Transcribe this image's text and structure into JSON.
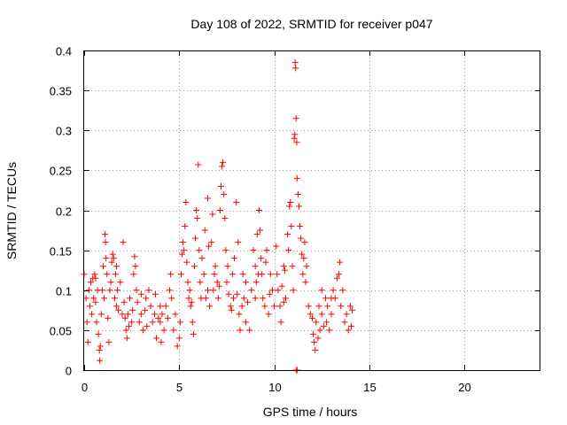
{
  "chart_data": {
    "type": "scatter",
    "title": "Day 108 of 2022, SRMTID for receiver p047",
    "xlabel": "GPS time / hours",
    "ylabel": "SRMTID / TECUs",
    "xlim": [
      0,
      24
    ],
    "ylim": [
      0,
      0.4
    ],
    "x_ticks": [
      0,
      5,
      10,
      15,
      20
    ],
    "y_ticks": [
      0,
      0.05,
      0.1,
      0.15,
      0.2,
      0.25,
      0.3,
      0.35,
      0.4
    ],
    "x_tick_labels": [
      "0",
      "5",
      "10",
      "15",
      "20"
    ],
    "y_tick_labels": [
      "0",
      "0.05",
      "0.1",
      "0.15",
      "0.2",
      "0.25",
      "0.3",
      "0.35",
      "0.4"
    ],
    "grid": true,
    "marker": "+",
    "marker_color": "#ff0000",
    "series": [
      {
        "name": "SRMTID",
        "points": [
          [
            0.0,
            0.12
          ],
          [
            0.1,
            0.09
          ],
          [
            0.15,
            0.06
          ],
          [
            0.2,
            0.035
          ],
          [
            0.25,
            0.1
          ],
          [
            0.3,
            0.08
          ],
          [
            0.35,
            0.11
          ],
          [
            0.4,
            0.07
          ],
          [
            0.45,
            0.115
          ],
          [
            0.5,
            0.09
          ],
          [
            0.55,
            0.12
          ],
          [
            0.6,
            0.085
          ],
          [
            0.65,
            0.06
          ],
          [
            0.7,
            0.1
          ],
          [
            0.75,
            0.045
          ],
          [
            0.8,
            0.025
          ],
          [
            0.82,
            0.012
          ],
          [
            0.85,
            0.03
          ],
          [
            0.9,
            0.07
          ],
          [
            0.95,
            0.1
          ],
          [
            1.0,
            0.13
          ],
          [
            1.05,
            0.09
          ],
          [
            1.1,
            0.17
          ],
          [
            1.12,
            0.16
          ],
          [
            1.15,
            0.14
          ],
          [
            1.2,
            0.12
          ],
          [
            1.25,
            0.065
          ],
          [
            1.3,
            0.035
          ],
          [
            1.35,
            0.1
          ],
          [
            1.4,
            0.11
          ],
          [
            1.45,
            0.135
          ],
          [
            1.5,
            0.145
          ],
          [
            1.55,
            0.14
          ],
          [
            1.6,
            0.09
          ],
          [
            1.65,
            0.12
          ],
          [
            1.7,
            0.08
          ],
          [
            1.75,
            0.1
          ],
          [
            1.8,
            0.075
          ],
          [
            1.9,
            0.11
          ],
          [
            2.0,
            0.07
          ],
          [
            2.05,
            0.16
          ],
          [
            2.1,
            0.085
          ],
          [
            2.15,
            0.065
          ],
          [
            2.2,
            0.05
          ],
          [
            2.25,
            0.04
          ],
          [
            2.3,
            0.07
          ],
          [
            2.35,
            0.055
          ],
          [
            2.4,
            0.09
          ],
          [
            2.5,
            0.06
          ],
          [
            2.55,
            0.075
          ],
          [
            2.6,
            0.12
          ],
          [
            2.65,
            0.142
          ],
          [
            2.7,
            0.13
          ],
          [
            2.75,
            0.1
          ],
          [
            2.8,
            0.085
          ],
          [
            2.9,
            0.06
          ],
          [
            3.0,
            0.07
          ],
          [
            3.1,
            0.05
          ],
          [
            3.2,
            0.075
          ],
          [
            3.25,
            0.09
          ],
          [
            3.3,
            0.055
          ],
          [
            3.4,
            0.1
          ],
          [
            3.5,
            0.08
          ],
          [
            3.6,
            0.06
          ],
          [
            3.7,
            0.07
          ],
          [
            3.75,
            0.095
          ],
          [
            3.8,
            0.04
          ],
          [
            3.9,
            0.065
          ],
          [
            4.0,
            0.08
          ],
          [
            4.05,
            0.035
          ],
          [
            4.1,
            0.07
          ],
          [
            4.2,
            0.05
          ],
          [
            4.3,
            0.08
          ],
          [
            4.4,
            0.065
          ],
          [
            4.5,
            0.1
          ],
          [
            4.55,
            0.12
          ],
          [
            4.6,
            0.09
          ],
          [
            4.7,
            0.05
          ],
          [
            4.8,
            0.07
          ],
          [
            4.9,
            0.03
          ],
          [
            5.0,
            0.04
          ],
          [
            5.05,
            0.06
          ],
          [
            5.1,
            0.12
          ],
          [
            5.15,
            0.145
          ],
          [
            5.2,
            0.16
          ],
          [
            5.25,
            0.15
          ],
          [
            5.3,
            0.18
          ],
          [
            5.35,
            0.21
          ],
          [
            5.4,
            0.135
          ],
          [
            5.45,
            0.11
          ],
          [
            5.5,
            0.09
          ],
          [
            5.55,
            0.1
          ],
          [
            5.6,
            0.08
          ],
          [
            5.65,
            0.085
          ],
          [
            5.7,
            0.06
          ],
          [
            5.75,
            0.045
          ],
          [
            5.8,
            0.13
          ],
          [
            5.85,
            0.165
          ],
          [
            5.9,
            0.2
          ],
          [
            5.95,
            0.19
          ],
          [
            6.0,
            0.257
          ],
          [
            6.05,
            0.15
          ],
          [
            6.1,
            0.11
          ],
          [
            6.15,
            0.09
          ],
          [
            6.2,
            0.14
          ],
          [
            6.3,
            0.12
          ],
          [
            6.35,
            0.175
          ],
          [
            6.4,
            0.09
          ],
          [
            6.5,
            0.215
          ],
          [
            6.55,
            0.155
          ],
          [
            6.6,
            0.08
          ],
          [
            6.7,
            0.16
          ],
          [
            6.75,
            0.195
          ],
          [
            6.8,
            0.1
          ],
          [
            6.85,
            0.12
          ],
          [
            6.9,
            0.13
          ],
          [
            7.0,
            0.11
          ],
          [
            7.05,
            0.09
          ],
          [
            7.1,
            0.105
          ],
          [
            7.15,
            0.2
          ],
          [
            7.2,
            0.23
          ],
          [
            7.25,
            0.255
          ],
          [
            7.3,
            0.26
          ],
          [
            7.35,
            0.22
          ],
          [
            7.4,
            0.19
          ],
          [
            7.45,
            0.15
          ],
          [
            7.5,
            0.11
          ],
          [
            7.55,
            0.13
          ],
          [
            7.6,
            0.095
          ],
          [
            7.7,
            0.08
          ],
          [
            7.75,
            0.075
          ],
          [
            7.8,
            0.12
          ],
          [
            7.85,
            0.09
          ],
          [
            7.9,
            0.14
          ],
          [
            8.0,
            0.21
          ],
          [
            8.05,
            0.095
          ],
          [
            8.1,
            0.16
          ],
          [
            8.15,
            0.07
          ],
          [
            8.2,
            0.05
          ],
          [
            8.3,
            0.08
          ],
          [
            8.35,
            0.12
          ],
          [
            8.4,
            0.09
          ],
          [
            8.5,
            0.06
          ],
          [
            8.6,
            0.085
          ],
          [
            8.7,
            0.05
          ],
          [
            8.8,
            0.1
          ],
          [
            8.9,
            0.15
          ],
          [
            9.0,
            0.13
          ],
          [
            9.05,
            0.11
          ],
          [
            9.1,
            0.17
          ],
          [
            9.15,
            0.12
          ],
          [
            9.2,
            0.2
          ],
          [
            9.25,
            0.175
          ],
          [
            9.3,
            0.14
          ],
          [
            9.35,
            0.12
          ],
          [
            9.4,
            0.09
          ],
          [
            9.5,
            0.08
          ],
          [
            9.55,
            0.135
          ],
          [
            9.6,
            0.15
          ],
          [
            9.7,
            0.07
          ],
          [
            9.75,
            0.095
          ],
          [
            9.8,
            0.12
          ],
          [
            9.9,
            0.1
          ],
          [
            10.0,
            0.08
          ],
          [
            10.1,
            0.155
          ],
          [
            10.15,
            0.12
          ],
          [
            10.2,
            0.1
          ],
          [
            10.3,
            0.08
          ],
          [
            10.35,
            0.06
          ],
          [
            10.4,
            0.105
          ],
          [
            10.5,
            0.085
          ],
          [
            10.55,
            0.125
          ],
          [
            10.6,
            0.09
          ],
          [
            10.7,
            0.17
          ],
          [
            10.75,
            0.15
          ],
          [
            10.8,
            0.205
          ],
          [
            10.85,
            0.21
          ],
          [
            10.9,
            0.18
          ],
          [
            10.95,
            0.13
          ],
          [
            11.0,
            0.1
          ],
          [
            11.05,
            0.29
          ],
          [
            11.08,
            0.295
          ],
          [
            11.1,
            0.385
          ],
          [
            11.12,
            0.378
          ],
          [
            11.15,
            0.315
          ],
          [
            11.18,
            0.285
          ],
          [
            11.2,
            0.24
          ],
          [
            11.25,
            0.22
          ],
          [
            11.3,
            0.205
          ],
          [
            11.35,
            0.18
          ],
          [
            11.4,
            0.165
          ],
          [
            11.45,
            0.145
          ],
          [
            11.5,
            0.12
          ],
          [
            11.55,
            0.14
          ],
          [
            11.6,
            0.16
          ],
          [
            11.65,
            0.11
          ],
          [
            11.7,
            0.13
          ],
          [
            11.8,
            0.08
          ],
          [
            11.9,
            0.07
          ],
          [
            12.0,
            0.065
          ],
          [
            12.05,
            0.045
          ],
          [
            12.1,
            0.035
          ],
          [
            12.15,
            0.025
          ],
          [
            12.2,
            0.06
          ],
          [
            12.3,
            0.04
          ],
          [
            12.35,
            0.08
          ],
          [
            12.4,
            0.05
          ],
          [
            12.5,
            0.07
          ],
          [
            12.6,
            0.055
          ],
          [
            12.7,
            0.09
          ],
          [
            12.75,
            0.06
          ],
          [
            12.8,
            0.08
          ],
          [
            12.9,
            0.05
          ],
          [
            13.0,
            0.07
          ],
          [
            13.1,
            0.1
          ],
          [
            13.2,
            0.09
          ],
          [
            13.3,
            0.115
          ],
          [
            13.4,
            0.12
          ],
          [
            13.45,
            0.135
          ],
          [
            13.5,
            0.08
          ],
          [
            13.6,
            0.1
          ],
          [
            13.7,
            0.06
          ],
          [
            13.8,
            0.07
          ],
          [
            13.9,
            0.05
          ],
          [
            14.0,
            0.08
          ],
          [
            14.05,
            0.055
          ],
          [
            14.1,
            0.075
          ],
          [
            11.15,
            0.0
          ],
          [
            11.2,
            0.0
          ],
          [
            0.6,
            0.115
          ],
          [
            1.7,
            0.13
          ],
          [
            3.0,
            0.095
          ],
          [
            4.0,
            0.06
          ],
          [
            6.5,
            0.1
          ],
          [
            8.5,
            0.11
          ],
          [
            9.0,
            0.09
          ],
          [
            10.5,
            0.13
          ],
          [
            12.5,
            0.1
          ],
          [
            13.0,
            0.09
          ]
        ]
      }
    ]
  }
}
